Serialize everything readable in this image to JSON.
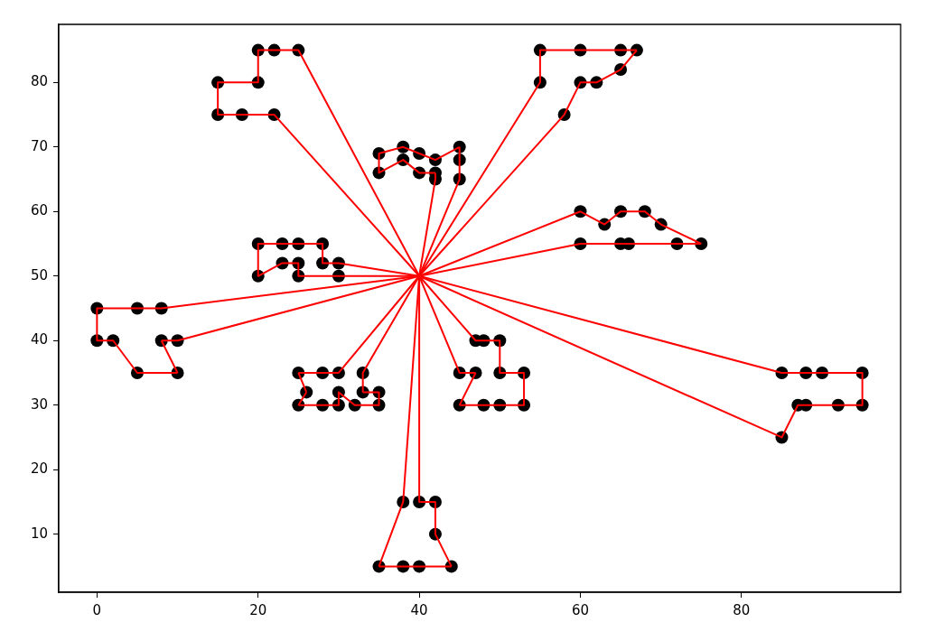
{
  "chart_data": {
    "type": "scatter",
    "xlim": [
      -4.75,
      99.75
    ],
    "ylim": [
      1,
      89
    ],
    "xticks": [
      0,
      20,
      40,
      60,
      80
    ],
    "yticks": [
      10,
      20,
      30,
      40,
      50,
      60,
      70,
      80
    ],
    "grid": false,
    "legend": false,
    "series": [
      {
        "type": "scatter",
        "marker": "circle",
        "color": "#000000",
        "x": [
          45,
          45,
          42,
          42,
          42,
          40,
          40,
          38,
          38,
          35,
          35,
          25,
          22,
          22,
          20,
          20,
          18,
          15,
          15,
          30,
          30,
          28,
          28,
          25,
          25,
          25,
          23,
          23,
          20,
          20,
          10,
          10,
          8,
          8,
          5,
          5,
          2,
          0,
          0,
          35,
          35,
          33,
          33,
          32,
          30,
          30,
          30,
          28,
          28,
          26,
          25,
          25,
          44,
          42,
          42,
          40,
          40,
          38,
          38,
          35,
          50,
          50,
          50,
          48,
          48,
          47,
          47,
          45,
          45,
          95,
          95,
          53,
          92,
          53,
          45,
          90,
          88,
          88,
          87,
          85,
          85,
          75,
          72,
          70,
          68,
          66,
          65,
          65,
          63,
          60,
          60,
          67,
          65,
          65,
          62,
          60,
          60,
          58,
          55,
          55
        ],
        "values": [
          68,
          70,
          66,
          68,
          65,
          69,
          66,
          68,
          70,
          66,
          69,
          85,
          75,
          85,
          80,
          85,
          75,
          75,
          80,
          50,
          52,
          52,
          55,
          50,
          52,
          55,
          52,
          55,
          50,
          55,
          35,
          40,
          40,
          45,
          35,
          45,
          40,
          40,
          45,
          30,
          32,
          32,
          35,
          30,
          30,
          32,
          35,
          30,
          35,
          32,
          30,
          35,
          5,
          10,
          15,
          5,
          15,
          5,
          15,
          5,
          30,
          35,
          40,
          30,
          40,
          35,
          40,
          30,
          35,
          30,
          35,
          30,
          30,
          35,
          65,
          35,
          30,
          35,
          30,
          25,
          35,
          55,
          55,
          58,
          60,
          55,
          55,
          60,
          58,
          55,
          60,
          85,
          85,
          82,
          80,
          80,
          85,
          75,
          80,
          85
        ]
      },
      {
        "type": "line",
        "marker": "none",
        "color": "#ff0000",
        "x": [
          33,
          33,
          40,
          42,
          42
        ],
        "values": [
          32,
          35,
          50,
          65,
          66
        ]
      },
      {
        "type": "line",
        "marker": "none",
        "color": "#ff0000",
        "x": [
          35,
          35,
          38,
          40,
          42
        ],
        "values": [
          69,
          66,
          68,
          66,
          66
        ]
      },
      {
        "type": "line",
        "marker": "none",
        "color": "#ff0000",
        "x": [
          35,
          38,
          40,
          42,
          45
        ],
        "values": [
          69,
          70,
          69,
          68,
          70
        ]
      },
      {
        "type": "line",
        "marker": "none",
        "color": "#ff0000",
        "x": [
          15,
          15,
          18,
          22,
          40,
          58,
          60,
          62,
          65,
          67
        ],
        "values": [
          80,
          75,
          75,
          75,
          50,
          75,
          80,
          80,
          82,
          85
        ]
      },
      {
        "type": "line",
        "marker": "none",
        "color": "#ff0000",
        "x": [
          15,
          20,
          20,
          22,
          25,
          40,
          55,
          55,
          60,
          65,
          67
        ],
        "values": [
          80,
          80,
          85,
          85,
          85,
          50,
          80,
          85,
          85,
          85,
          85
        ]
      },
      {
        "type": "line",
        "marker": "none",
        "color": "#ff0000",
        "x": [
          20,
          20,
          23,
          25,
          25,
          30,
          40,
          85,
          88,
          90,
          95,
          95
        ],
        "values": [
          55,
          50,
          52,
          52,
          50,
          50,
          50,
          35,
          35,
          35,
          35,
          30
        ]
      },
      {
        "type": "line",
        "marker": "none",
        "color": "#ff0000",
        "x": [
          20,
          23,
          25,
          28,
          28,
          30,
          40,
          85,
          87,
          88,
          92,
          95
        ],
        "values": [
          55,
          55,
          55,
          55,
          52,
          52,
          50,
          25,
          30,
          30,
          30,
          30
        ]
      },
      {
        "type": "line",
        "marker": "none",
        "color": "#ff0000",
        "x": [
          8,
          10,
          40,
          60,
          65,
          66,
          72,
          75
        ],
        "values": [
          40,
          40,
          50,
          55,
          55,
          55,
          55,
          55
        ]
      },
      {
        "type": "line",
        "marker": "none",
        "color": "#ff0000",
        "x": [
          8,
          10
        ],
        "values": [
          40,
          35
        ]
      },
      {
        "type": "line",
        "marker": "none",
        "color": "#ff0000",
        "x": [
          0,
          0,
          2,
          5,
          10
        ],
        "values": [
          45,
          40,
          40,
          35,
          35
        ]
      },
      {
        "type": "line",
        "marker": "none",
        "color": "#ff0000",
        "x": [
          0,
          5,
          8,
          40,
          60,
          63,
          65,
          68,
          70,
          75
        ],
        "values": [
          45,
          45,
          45,
          50,
          60,
          58,
          60,
          60,
          58,
          55
        ]
      },
      {
        "type": "line",
        "marker": "none",
        "color": "#ff0000",
        "x": [
          33,
          35,
          35
        ],
        "values": [
          32,
          32,
          30
        ]
      },
      {
        "type": "line",
        "marker": "none",
        "color": "#ff0000",
        "x": [
          25,
          28,
          30,
          30,
          32,
          35
        ],
        "values": [
          30,
          30,
          30,
          32,
          30,
          30
        ]
      },
      {
        "type": "line",
        "marker": "none",
        "color": "#ff0000",
        "x": [
          25,
          26
        ],
        "values": [
          30,
          32
        ]
      },
      {
        "type": "line",
        "marker": "none",
        "color": "#ff0000",
        "x": [
          25,
          26
        ],
        "values": [
          35,
          32
        ]
      },
      {
        "type": "line",
        "marker": "none",
        "color": "#ff0000",
        "x": [
          25,
          28,
          30,
          40,
          45,
          45
        ],
        "values": [
          35,
          35,
          35,
          50,
          65,
          70
        ]
      },
      {
        "type": "line",
        "marker": "none",
        "color": "#ff0000",
        "x": [
          40,
          40,
          42,
          42,
          44
        ],
        "values": [
          50,
          15,
          15,
          10,
          5
        ]
      },
      {
        "type": "line",
        "marker": "none",
        "color": "#ff0000",
        "x": [
          35,
          38,
          40,
          44
        ],
        "values": [
          5,
          5,
          5,
          5
        ]
      },
      {
        "type": "line",
        "marker": "none",
        "color": "#ff0000",
        "x": [
          35,
          38,
          40
        ],
        "values": [
          5,
          15,
          50
        ]
      },
      {
        "type": "line",
        "marker": "none",
        "color": "#ff0000",
        "x": [
          40,
          47,
          48,
          50,
          50,
          53,
          53
        ],
        "values": [
          50,
          40,
          40,
          40,
          35,
          35,
          30
        ]
      },
      {
        "type": "line",
        "marker": "none",
        "color": "#ff0000",
        "x": [
          45,
          48,
          50,
          53
        ],
        "values": [
          30,
          30,
          30,
          30
        ]
      },
      {
        "type": "line",
        "marker": "none",
        "color": "#ff0000",
        "x": [
          45,
          47
        ],
        "values": [
          30,
          35
        ]
      },
      {
        "type": "line",
        "marker": "none",
        "color": "#ff0000",
        "x": [
          40,
          45,
          47
        ],
        "values": [
          50,
          35,
          35
        ]
      }
    ]
  }
}
